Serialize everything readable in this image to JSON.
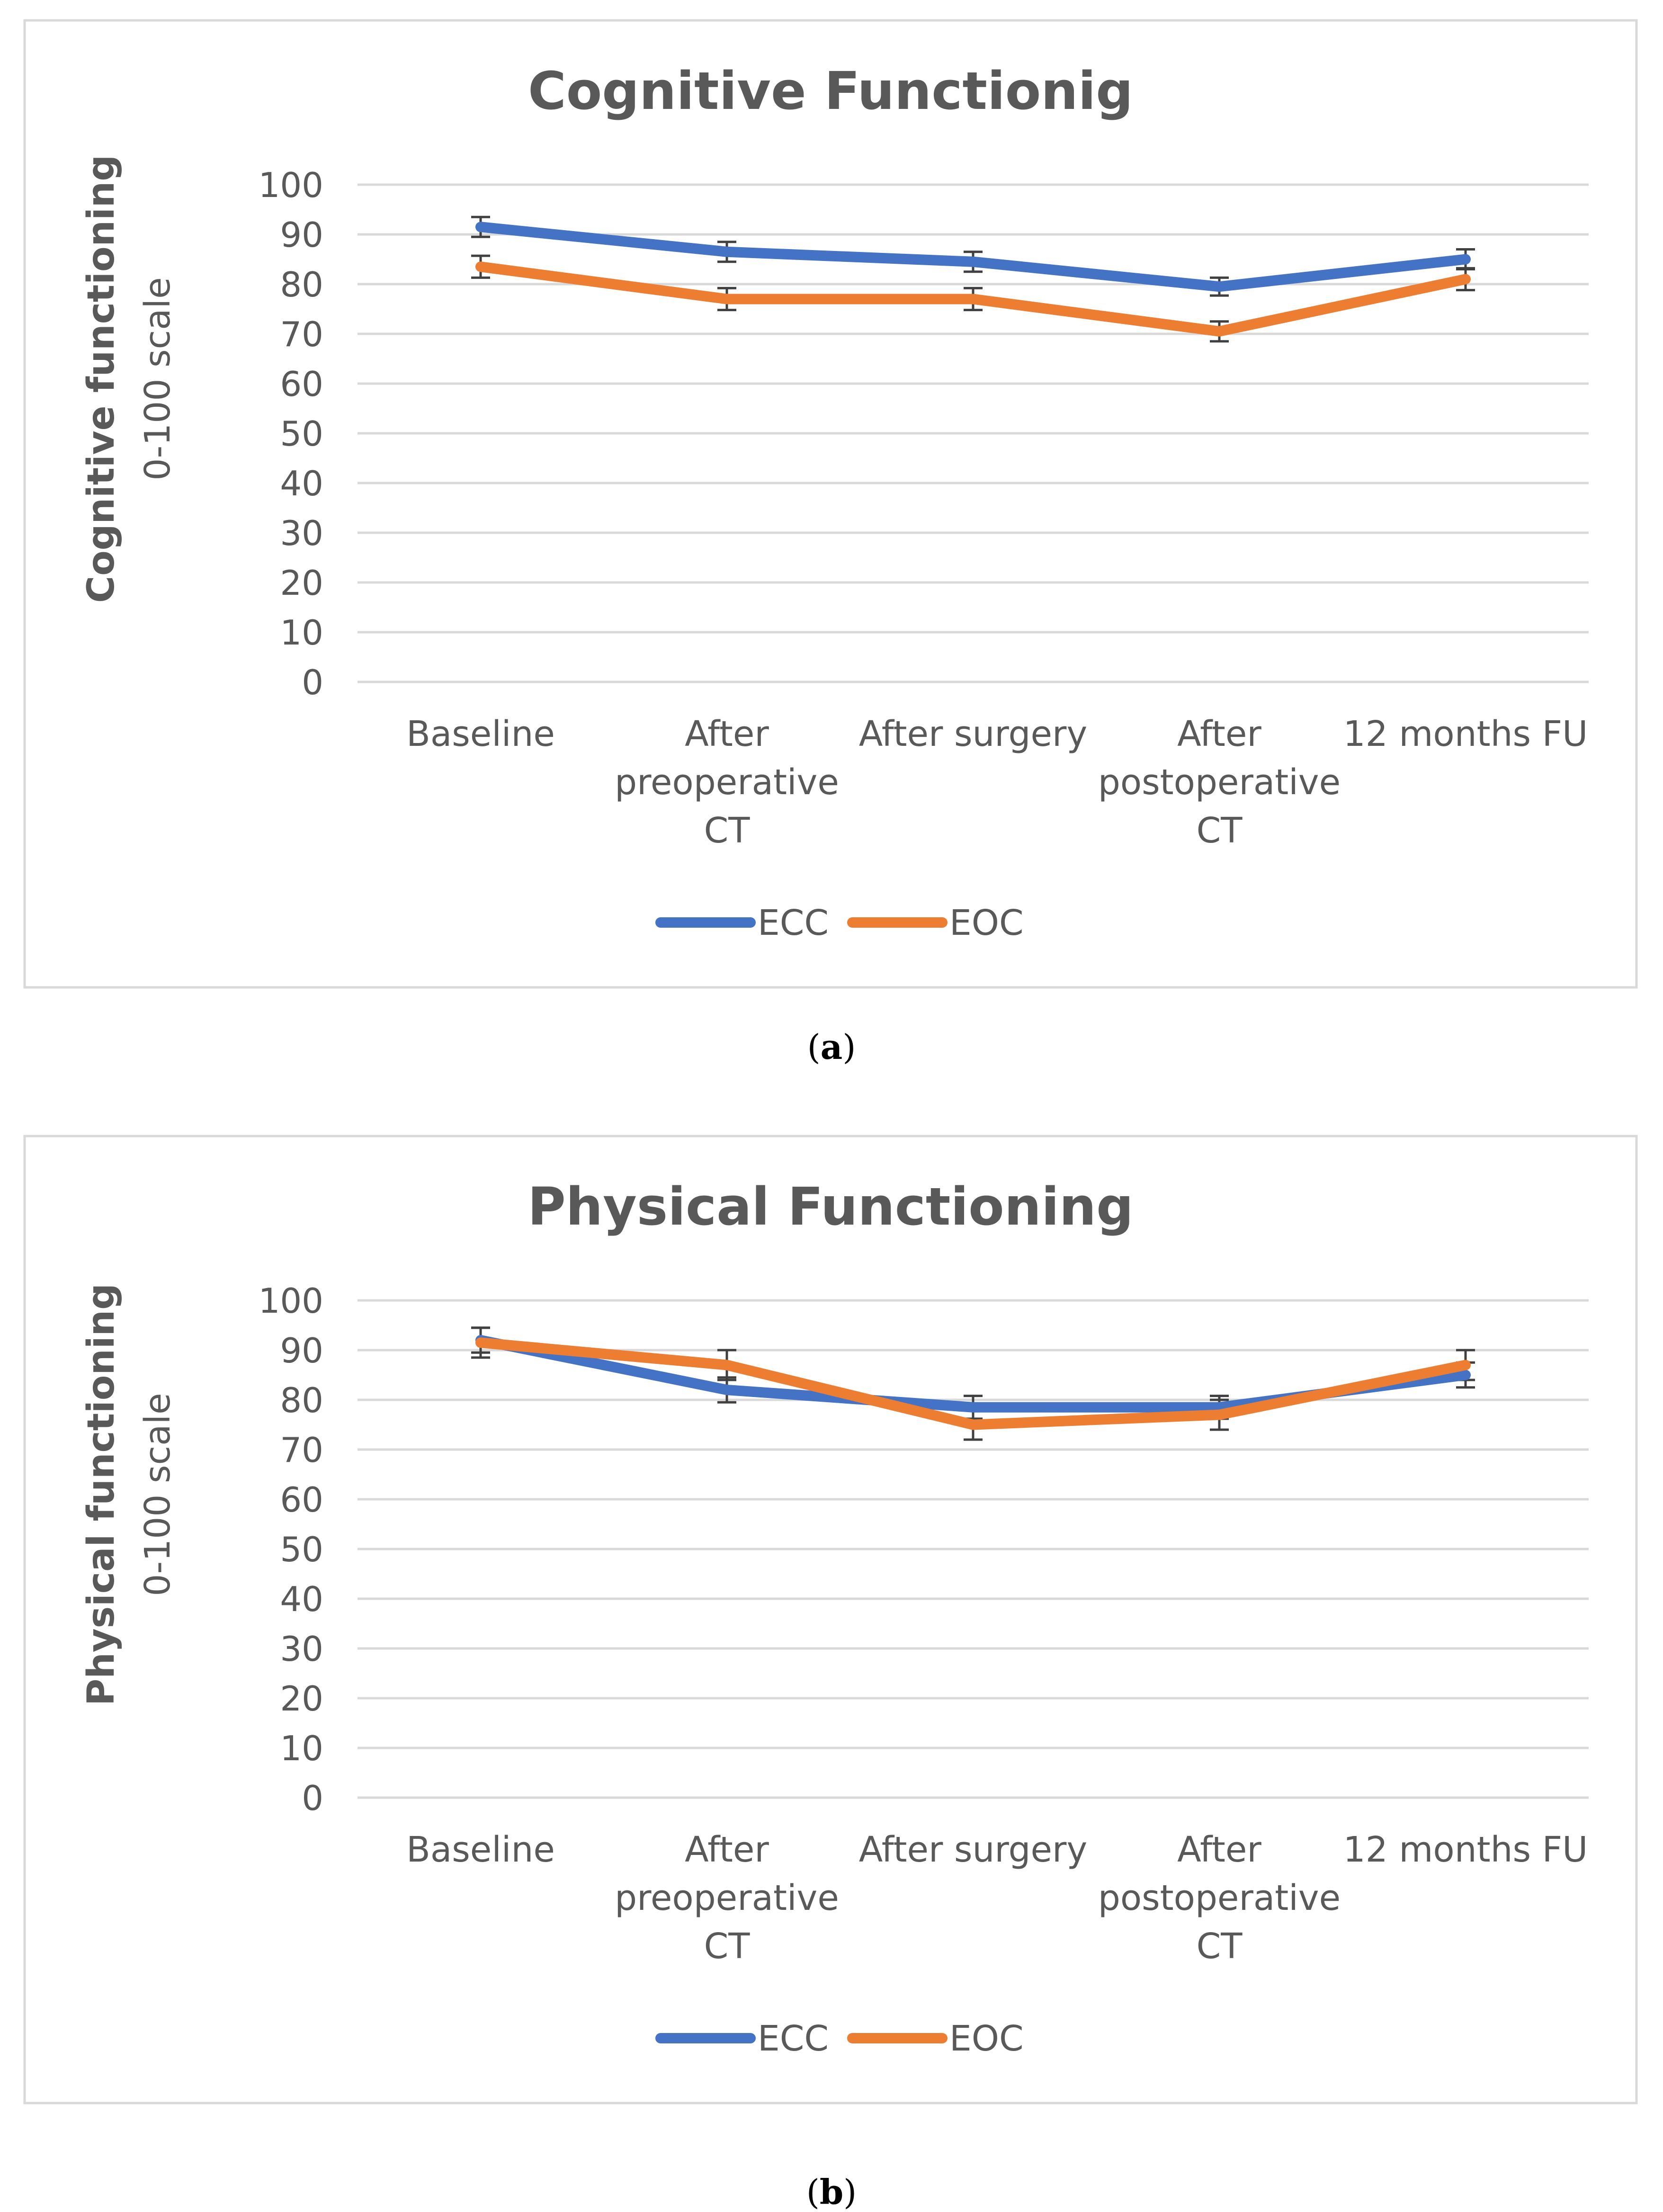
{
  "figure": {
    "panels": [
      {
        "caption_open": "(",
        "caption_letter": "a",
        "caption_close": ")"
      },
      {
        "caption_open": "(",
        "caption_letter": "b",
        "caption_close": ")"
      }
    ]
  },
  "colors": {
    "ecc": "#4472C4",
    "eoc": "#ED7D31",
    "grid": "#D9D9D9",
    "frame": "#D9D9D9",
    "text": "#595959",
    "title": "#595959"
  },
  "chart_data": [
    {
      "type": "line",
      "title": "Cognitive Functionig",
      "ylabel_line1": "Cognitive functioning",
      "ylabel_line2": "0-100 scale",
      "xlabel": "",
      "ylim": [
        0,
        100
      ],
      "yticks": [
        "0",
        "10",
        "20",
        "30",
        "40",
        "50",
        "60",
        "70",
        "80",
        "90",
        "100"
      ],
      "categories": [
        [
          "Baseline"
        ],
        [
          "After",
          "preoperative",
          "CT"
        ],
        [
          "After surgery"
        ],
        [
          "After",
          "postoperative",
          "CT"
        ],
        [
          "12 months FU"
        ]
      ],
      "series": [
        {
          "name": "ECC",
          "color": "#4472C4",
          "values": [
            91.5,
            86.5,
            84.5,
            79.5,
            85
          ],
          "err": [
            2,
            2,
            2,
            1.8,
            2
          ]
        },
        {
          "name": "EOC",
          "color": "#ED7D31",
          "values": [
            83.5,
            77,
            77,
            70.5,
            81
          ],
          "err": [
            2.2,
            2.2,
            2.2,
            2,
            2.2
          ]
        }
      ],
      "legend": "bottom"
    },
    {
      "type": "line",
      "title": "Physical Functioning",
      "ylabel_line1": "Physical functioning",
      "ylabel_line2": "0-100 scale",
      "xlabel": "",
      "ylim": [
        0,
        100
      ],
      "yticks": [
        "0",
        "10",
        "20",
        "30",
        "40",
        "50",
        "60",
        "70",
        "80",
        "90",
        "100"
      ],
      "categories": [
        [
          "Baseline"
        ],
        [
          "After",
          "preoperative",
          "CT"
        ],
        [
          "After surgery"
        ],
        [
          "After",
          "postoperative",
          "CT"
        ],
        [
          "12 months FU"
        ]
      ],
      "series": [
        {
          "name": "ECC",
          "color": "#4472C4",
          "values": [
            92,
            82,
            78.5,
            78.5,
            85
          ],
          "err": [
            2.5,
            2.5,
            2.3,
            2.3,
            2.5
          ]
        },
        {
          "name": "EOC",
          "color": "#ED7D31",
          "values": [
            91.5,
            87,
            75,
            77,
            87
          ],
          "err": [
            3,
            3,
            3,
            3,
            3
          ]
        }
      ],
      "legend": "bottom"
    }
  ]
}
